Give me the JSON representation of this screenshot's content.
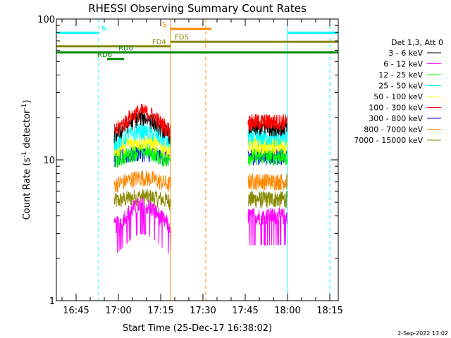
{
  "chart_data": {
    "type": "line",
    "title": "RHESSI Observing Summary Count Rates",
    "xlabel": "Start Time (25-Dec-17 16:38:02)",
    "ylabel_main": "Count Rate (s",
    "ylabel_sup1": "-1",
    "ylabel_mid": " detector",
    "ylabel_sup2": "-1",
    "ylabel_end": ")",
    "x_start_minutes": 38.0,
    "x_range_minutes": [
      0,
      100
    ],
    "y_scale": "log",
    "ylim": [
      1,
      100
    ],
    "x_ticks": [
      {
        "label": "16:45",
        "min": 7
      },
      {
        "label": "17:00",
        "min": 22
      },
      {
        "label": "17:15",
        "min": 37
      },
      {
        "label": "17:30",
        "min": 52
      },
      {
        "label": "17:45",
        "min": 67
      },
      {
        "label": "18:00",
        "min": 82
      },
      {
        "label": "18:15",
        "min": 97
      }
    ],
    "y_ticks": [
      {
        "label": "1",
        "value": 1
      },
      {
        "label": "10",
        "value": 10
      },
      {
        "label": "100",
        "value": 100
      }
    ],
    "legend_title": "Det 1,3, Att 0",
    "series": [
      {
        "name": "3 - 6 keV",
        "color": "#000000",
        "base": 13.5,
        "peak": 20
      },
      {
        "name": "6 - 12 keV",
        "color": "#ff00ff",
        "base": 3.0,
        "peak": 4.8
      },
      {
        "name": "12 - 25 keV",
        "color": "#00ff00",
        "base": 9.5,
        "peak": 11.5
      },
      {
        "name": "25 - 50 keV",
        "color": "#00ffff",
        "base": 12.5,
        "peak": 16
      },
      {
        "name": "50 - 100 keV",
        "color": "#ffff00",
        "base": 11.5,
        "peak": 13.5
      },
      {
        "name": "100 - 300 keV",
        "color": "#ff0000",
        "base": 14.5,
        "peak": 22
      },
      {
        "name": "300 - 800 keV",
        "color": "#0000ff",
        "base": 10.0,
        "peak": 11.2
      },
      {
        "name": "800 - 7000 keV",
        "color": "#ff8800",
        "base": 6.5,
        "peak": 7.5
      },
      {
        "name": "7000 - 15000 keV",
        "color": "#888800",
        "base": 5.0,
        "peak": 5.5
      }
    ],
    "data_intervals": [
      [
        20.5,
        40.5
      ],
      [
        68.0,
        82.0
      ]
    ],
    "flags": [
      {
        "label": "N",
        "color": "#00ffff",
        "y": 80,
        "segments": [
          [
            0,
            15
          ],
          [
            82,
            100
          ]
        ],
        "label_at": 16
      },
      {
        "label": "S",
        "color": "#ff8800",
        "y": 85,
        "segments": [
          [
            40.5,
            55
          ]
        ],
        "label_at": 37.5
      },
      {
        "label": "FD4",
        "color": "#888800",
        "y": 64,
        "segments": [
          [
            0,
            40.5
          ]
        ],
        "label_at": 34
      },
      {
        "label": "FD5",
        "color": "#888800",
        "y": 69,
        "segments": [
          [
            40.5,
            100
          ]
        ],
        "label_at": 42
      },
      {
        "label": "RD0",
        "color": "#008800",
        "y": 58,
        "segments": [
          [
            20,
            100
          ]
        ],
        "label_at": 22
      },
      {
        "label": "RD0",
        "color": "#008800",
        "y": 58,
        "segments": [
          [
            0,
            20
          ]
        ],
        "label_at": 0,
        "hide_label": true
      },
      {
        "label": "RD6",
        "color": "#008800",
        "y": 52,
        "segments": [
          [
            18,
            24
          ]
        ],
        "label_at": 14.5
      }
    ],
    "vlines": [
      {
        "min": 0,
        "color": "#00ffff",
        "style": "solid"
      },
      {
        "min": 15,
        "color": "#00ffff",
        "style": "dash"
      },
      {
        "min": 40.5,
        "color": "#ff8800",
        "style": "solid"
      },
      {
        "min": 53,
        "color": "#ff8800",
        "style": "dash"
      },
      {
        "min": 82,
        "color": "#00ffff",
        "style": "solid"
      },
      {
        "min": 97,
        "color": "#00ffff",
        "style": "dash"
      }
    ],
    "footer_date": "2-Sep-2022 13:02"
  }
}
